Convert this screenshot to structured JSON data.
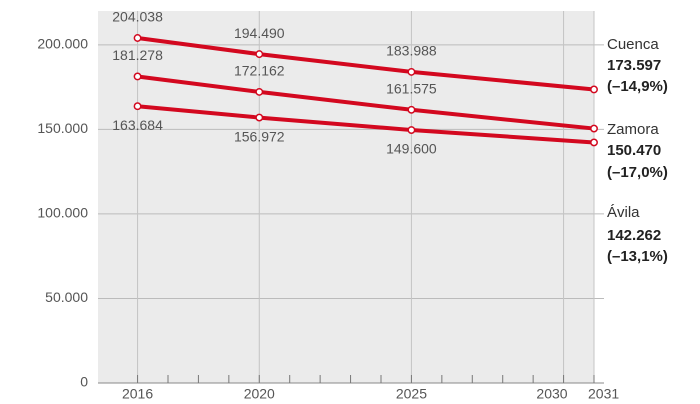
{
  "chart_data": {
    "type": "line",
    "x": [
      2016,
      2020,
      2025,
      2031
    ],
    "xlim": [
      2014.7,
      2031
    ],
    "xticks": [
      2016,
      2020,
      2025,
      2030,
      2031
    ],
    "xticks_minor": [
      2017,
      2018,
      2019,
      2021,
      2022,
      2023,
      2024,
      2026,
      2027,
      2028,
      2029
    ],
    "ylim": [
      0,
      220000
    ],
    "yticks": [
      0,
      {
        "value": 50000,
        "label": "50.000"
      },
      {
        "value": 100000,
        "label": "100.000"
      },
      {
        "value": 150000,
        "label": "150.000"
      },
      {
        "value": 200000,
        "label": "200.000"
      }
    ],
    "grid": true,
    "series": [
      {
        "name": "Cuenca",
        "color": "#d3081f",
        "label_position": "above",
        "values": [
          204038,
          194490,
          183988,
          173597
        ],
        "value_labels": [
          "204.038",
          "194.490",
          "183.988",
          "173.597"
        ],
        "change": {
          "value": -14.9,
          "label": "(–14,9%)"
        }
      },
      {
        "name": "Zamora",
        "color": "#d3081f",
        "label_position": "above",
        "values": [
          181278,
          172162,
          161575,
          150470
        ],
        "value_labels": [
          "181.278",
          "172.162",
          "161.575",
          "150.470"
        ],
        "change": {
          "value": -17.0,
          "label": "(–17,0%)"
        }
      },
      {
        "name": "Ávila",
        "color": "#d3081f",
        "label_position": "below",
        "values": [
          163684,
          156972,
          149600,
          142262
        ],
        "value_labels": [
          "163.684",
          "156.972",
          "149.600",
          "142.262"
        ],
        "change": {
          "value": -13.1,
          "label": "(–13,1%)"
        }
      }
    ]
  }
}
